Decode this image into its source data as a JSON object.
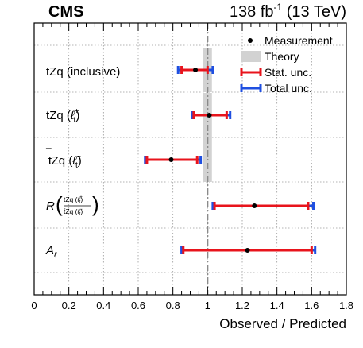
{
  "header": {
    "experiment": "CMS",
    "lumi_value": "138 fb",
    "lumi_exp": "-1",
    "lumi_tail": " (13 TeV)"
  },
  "chart_data": {
    "type": "scatter",
    "orientation": "horizontal",
    "xlabel": "Observed / Predicted",
    "xlim": [
      0,
      1.8
    ],
    "x_ticks": [
      "0",
      "0.2",
      "0.4",
      "0.6",
      "0.8",
      "1",
      "1.2",
      "1.4",
      "1.6",
      "1.8"
    ],
    "grid": true,
    "legend_position": "top-right",
    "legend": {
      "measurement": "Measurement",
      "theory": "Theory",
      "stat": "Stat. unc.",
      "total": "Total unc."
    },
    "theory": {
      "value": 1.0,
      "band": [
        0.975,
        1.025
      ]
    },
    "colors": {
      "stat": "#e8141c",
      "total": "#1f4fe0",
      "theory": "#d2d2d2",
      "marker": "#000000"
    },
    "rows": [
      {
        "label": "tZq (inclusive)",
        "value": 0.93,
        "stat": [
          0.85,
          1.0
        ],
        "total": [
          0.83,
          1.03
        ]
      },
      {
        "label": "tZq (ℓt+)",
        "value": 1.01,
        "stat": [
          0.92,
          1.11
        ],
        "total": [
          0.91,
          1.13
        ]
      },
      {
        "label": "t̄Zq (ℓt−)",
        "value": 0.79,
        "stat": [
          0.65,
          0.94
        ],
        "total": [
          0.64,
          0.96
        ]
      },
      {
        "label": "R (tZq (ℓt+) / t̄Zq (ℓt−))",
        "value": 1.27,
        "stat": [
          1.04,
          1.58
        ],
        "total": [
          1.03,
          1.61
        ]
      },
      {
        "label": "Aℓ",
        "value": 1.23,
        "stat": [
          0.86,
          1.6
        ],
        "total": [
          0.85,
          1.62
        ]
      }
    ]
  }
}
